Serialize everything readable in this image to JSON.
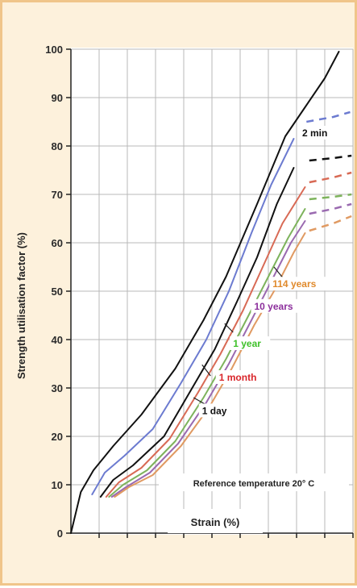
{
  "chart_data": {
    "type": "line",
    "xlabel": "Strain (%)",
    "ylabel": "Strength utilisation factor (%)",
    "yticks": [
      "0",
      "10",
      "20",
      "30",
      "40",
      "50",
      "60",
      "70",
      "80",
      "90",
      "100"
    ],
    "xticks": [],
    "ylim": [
      0,
      100
    ],
    "xlim": [
      0,
      10
    ],
    "grid": true,
    "note": "Reference temperature 20° C",
    "series": [
      {
        "name": "2 min",
        "color": "#111111",
        "x": [
          0,
          0.35,
          0.8,
          1.5,
          2.5,
          3.7,
          4.7,
          5.5,
          6.6,
          7.6,
          8.3,
          9.0,
          9.5
        ],
        "y": [
          0,
          8.5,
          13,
          18,
          24.5,
          34,
          44,
          53,
          68,
          82,
          88,
          94,
          99.5
        ],
        "dash_x": [],
        "dash_y": []
      },
      {
        "name": "",
        "color": "#6c7bd0",
        "x": [
          0.75,
          1.2,
          1.9,
          2.9,
          3.9,
          4.8,
          5.6,
          6.4,
          7.1,
          7.9
        ],
        "y": [
          8,
          12.5,
          16,
          21.5,
          31,
          40,
          50,
          62,
          72,
          81.5
        ],
        "dash_x": [
          8.35,
          9.3,
          9.9
        ],
        "dash_y": [
          85,
          86,
          87
        ]
      },
      {
        "name": "",
        "color": "#111111",
        "x": [
          1.05,
          1.5,
          2.2,
          3.3,
          4.3,
          5.1,
          5.9,
          6.6,
          7.3,
          7.9
        ],
        "y": [
          7.5,
          11,
          14,
          20,
          30,
          38,
          48,
          57,
          68,
          75.5
        ],
        "dash_x": [
          8.45,
          9.3,
          9.95
        ],
        "dash_y": [
          77,
          77.5,
          78
        ]
      },
      {
        "name": "",
        "color": "#d86a55",
        "x": [
          1.25,
          1.7,
          2.5,
          3.5,
          4.5,
          5.3,
          6.1,
          6.8,
          7.5,
          8.3
        ],
        "y": [
          7.5,
          10.5,
          13.5,
          19.5,
          29,
          37,
          46,
          55,
          64,
          71.5
        ],
        "dash_x": [
          8.45,
          9.3,
          9.95
        ],
        "dash_y": [
          72.5,
          73.5,
          74.5
        ]
      },
      {
        "name": "",
        "color": "#7db35c",
        "x": [
          1.35,
          1.85,
          2.7,
          3.7,
          4.7,
          5.5,
          6.3,
          7.0,
          7.7,
          8.3
        ],
        "y": [
          7.5,
          10,
          13,
          19,
          28,
          36,
          45,
          53,
          61,
          67
        ],
        "dash_x": [
          8.45,
          9.3,
          9.95
        ],
        "dash_y": [
          69,
          69.5,
          70
        ]
      },
      {
        "name": "",
        "color": "#9a6ab0",
        "x": [
          1.45,
          1.95,
          2.8,
          3.8,
          4.8,
          5.6,
          6.4,
          7.1,
          7.8,
          8.3
        ],
        "y": [
          7.5,
          9.5,
          12.5,
          18.5,
          27,
          35,
          44,
          52,
          60,
          64.5
        ],
        "dash_x": [
          8.45,
          9.3,
          9.95
        ],
        "dash_y": [
          66,
          67,
          68
        ]
      },
      {
        "name": "",
        "color": "#e09a62",
        "x": [
          1.55,
          2.05,
          2.9,
          3.9,
          4.9,
          5.7,
          6.5,
          7.2,
          7.9,
          8.3
        ],
        "y": [
          7.5,
          9.5,
          12,
          18,
          26,
          34,
          43,
          50,
          58,
          62
        ],
        "dash_x": [
          8.45,
          9.3,
          9.95
        ],
        "dash_y": [
          62.5,
          64,
          65.5
        ]
      }
    ],
    "labels": [
      {
        "text": "2 min",
        "color": "#111111",
        "x": 8.2,
        "y": 82
      },
      {
        "text": "114 years",
        "color": "#e08a2c",
        "x": 7.15,
        "y": 50.8
      },
      {
        "text": "10 years",
        "color": "#8c2f9c",
        "x": 6.5,
        "y": 46.2
      },
      {
        "text": "1 year",
        "color": "#3fc12a",
        "x": 5.75,
        "y": 38.5
      },
      {
        "text": "1 month",
        "color": "#d9252a",
        "x": 5.25,
        "y": 31.5
      },
      {
        "text": "1 day",
        "color": "#111111",
        "x": 4.65,
        "y": 24.6
      }
    ],
    "pointers": [
      {
        "x1": 7.55,
        "y1": 52.5,
        "x2": 7.2,
        "y2": 55
      },
      {
        "x1": 5.75,
        "y1": 41.5,
        "x2": 5.45,
        "y2": 43.3
      },
      {
        "x1": 4.95,
        "y1": 32.5,
        "x2": 4.65,
        "y2": 34.8
      },
      {
        "x1": 4.8,
        "y1": 26.5,
        "x2": 4.35,
        "y2": 28
      }
    ]
  }
}
